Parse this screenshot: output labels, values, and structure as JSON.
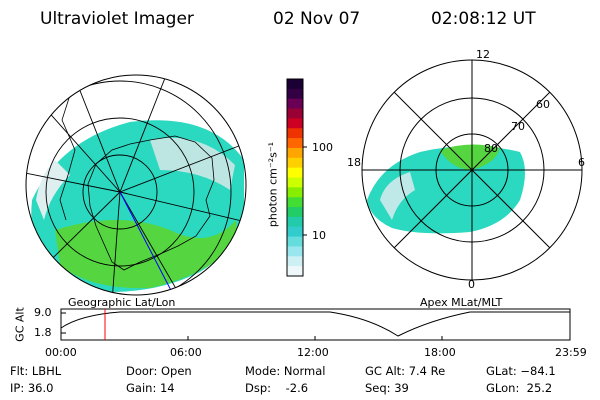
{
  "header": {
    "instrument": "Ultraviolet Imager",
    "date": "02 Nov 07",
    "time": "02:08:12 UT"
  },
  "left_panel": {
    "label": "Geographic Lat/Lon"
  },
  "right_panel": {
    "label": "Apex MLat/MLT",
    "mlt_labels": {
      "top": "12",
      "left": "18",
      "right": "6",
      "bottom": "0"
    },
    "lat_labels": [
      "60",
      "70",
      "80"
    ]
  },
  "colorbar": {
    "label": "photon cm⁻²s⁻¹",
    "ticks": [
      "100",
      "10"
    ],
    "colors": [
      "#1a0033",
      "#330044",
      "#6a0055",
      "#990033",
      "#cc0022",
      "#ee3300",
      "#ff6600",
      "#ffa500",
      "#ffd000",
      "#ffff00",
      "#ccff00",
      "#88ee00",
      "#44dd33",
      "#22cc66",
      "#22ccaa",
      "#33cccc",
      "#66dddd",
      "#99e6ee",
      "#ccf0f4",
      "#eef8fa"
    ]
  },
  "altitude_plot": {
    "ylabel": "GC Alt",
    "yticks": [
      "9.0",
      "1.8"
    ],
    "xticks": [
      "00:00",
      "06:00",
      "12:00",
      "18:00",
      "23:59"
    ]
  },
  "info": {
    "flt": "Flt: LBHL",
    "ip": "IP: 36.0",
    "door": "Door: Open",
    "gain": "Gain: 14",
    "mode": "Mode: Normal",
    "dsp": "Dsp:    -2.6",
    "gc_alt": "GC Alt: 7.4 Re",
    "seq": "Seq: 39",
    "glat": "GLat: −84.1",
    "glon": "GLon:  25.2"
  }
}
